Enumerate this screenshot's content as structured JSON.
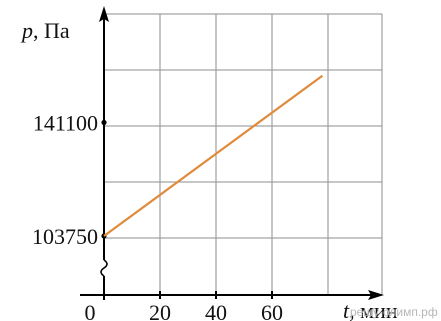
{
  "chart_data": {
    "type": "line",
    "xlabel_var": "t",
    "xlabel_unit": ", мин",
    "ylabel_var": "p",
    "ylabel_unit": ", Па",
    "x_ticks": [
      "0",
      "20",
      "40",
      "60"
    ],
    "y_ticks": [
      "103750",
      "141100"
    ],
    "y_axis_break": true,
    "grid": true,
    "line_color": "#e08a3a",
    "series": [
      {
        "x": [
          0,
          78
        ],
        "y": [
          103750,
          156500
        ]
      }
    ]
  },
  "watermark": "решу-олимп.рф"
}
